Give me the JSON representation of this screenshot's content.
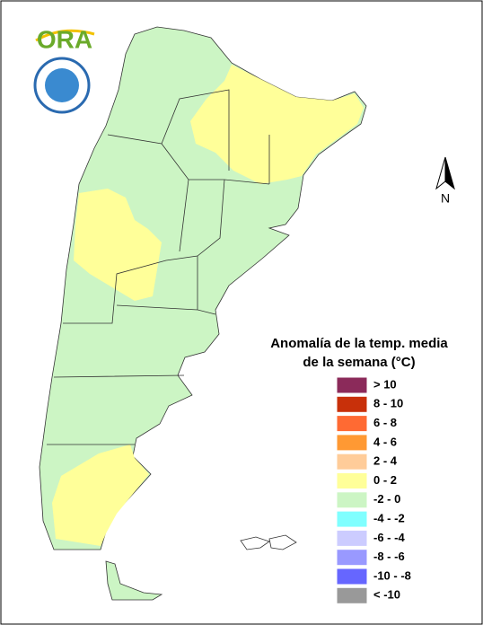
{
  "header": {
    "logo": "ORA"
  },
  "north_arrow": "N",
  "legend": {
    "title": [
      "Anomalía de la temp. media",
      "de la semana (°C)"
    ],
    "items": [
      {
        "label": "> 10",
        "color": "#8b2a5a"
      },
      {
        "label": "8 - 10",
        "color": "#c8300a"
      },
      {
        "label": "6 - 8",
        "color": "#ff6a33"
      },
      {
        "label": "4 - 6",
        "color": "#ff9933"
      },
      {
        "label": "2 - 4",
        "color": "#ffcc99"
      },
      {
        "label": "0 - 2",
        "color": "#ffff99"
      },
      {
        "label": "-2 - 0",
        "color": "#ccf5c4"
      },
      {
        "label": "-4 - -2",
        "color": "#80ffff"
      },
      {
        "label": "-6 - -4",
        "color": "#ccccff"
      },
      {
        "label": "-8 - -6",
        "color": "#9999ff"
      },
      {
        "label": "-10 - -8",
        "color": "#6666ff"
      },
      {
        "label": "< -10",
        "color": "#999999"
      }
    ]
  }
}
